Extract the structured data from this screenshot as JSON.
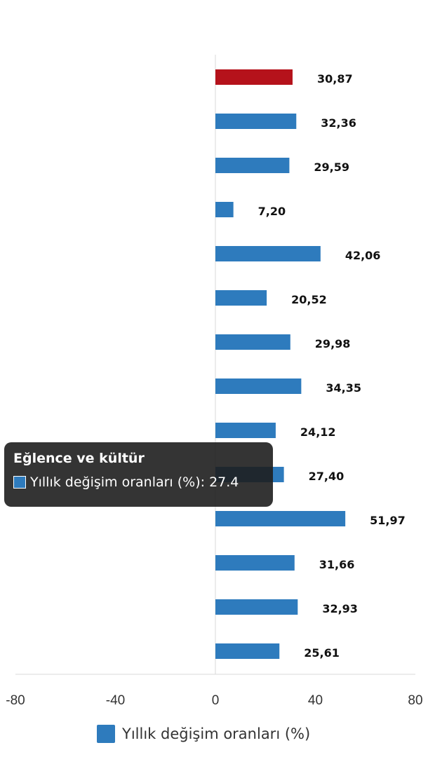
{
  "chart_data": {
    "type": "bar",
    "orientation": "horizontal",
    "xlim": [
      -80,
      80
    ],
    "x_ticks": [
      "-80",
      "-40",
      "0",
      "40",
      "80"
    ],
    "x_tick_values": [
      -80,
      -40,
      0,
      40,
      80
    ],
    "series": [
      {
        "name": "Yıllık değişim oranları (%)",
        "values": [
          30.87,
          32.36,
          29.59,
          7.2,
          42.06,
          20.52,
          29.98,
          34.35,
          24.12,
          27.4,
          51.97,
          31.66,
          32.93,
          25.61
        ],
        "value_labels": [
          "30,87",
          "32,36",
          "29,59",
          "7,20",
          "42,06",
          "20,52",
          "29,98",
          "34,35",
          "24,12",
          "27,40",
          "51,97",
          "31,66",
          "32,93",
          "25,61"
        ],
        "colors": [
          "#b5121b",
          "#2e7bbd",
          "#2e7bbd",
          "#2e7bbd",
          "#2e7bbd",
          "#2e7bbd",
          "#2e7bbd",
          "#2e7bbd",
          "#2e7bbd",
          "#2e7bbd",
          "#2e7bbd",
          "#2e7bbd",
          "#2e7bbd",
          "#2e7bbd"
        ]
      }
    ],
    "legend": {
      "label": "Yıllık değişim oranları (%)",
      "color": "#2e7bbd",
      "position": "bottom"
    },
    "grid": false
  },
  "tooltip": {
    "title": "Eğlence ve kültür",
    "text": "Yıllık değişim oranları (%): 27.4",
    "color": "#2e7bbd"
  }
}
